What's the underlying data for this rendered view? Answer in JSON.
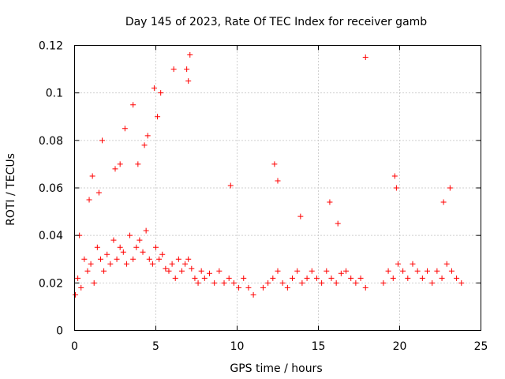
{
  "chart_data": {
    "type": "scatter",
    "title": "Day 145 of 2023, Rate Of TEC Index for receiver gamb",
    "xlabel": "GPS time / hours",
    "ylabel": "ROTI / TECUs",
    "xlim": [
      0,
      25
    ],
    "ylim": [
      0,
      0.12
    ],
    "xticks": [
      0,
      5,
      10,
      15,
      20,
      25
    ],
    "xtick_labels": [
      "0",
      "5",
      "10",
      "15",
      "20",
      "25"
    ],
    "yticks": [
      0,
      0.02,
      0.04,
      0.06,
      0.08,
      0.1,
      0.12
    ],
    "ytick_labels": [
      "0",
      "0.02",
      "0.04",
      "0.06",
      "0.08",
      "0.1",
      "0.12"
    ],
    "grid": true,
    "marker": "+",
    "color": "#ff0000",
    "series": [
      {
        "name": "ROTI",
        "x": [
          0.05,
          0.2,
          0.4,
          0.6,
          0.8,
          1.0,
          1.2,
          1.4,
          1.6,
          1.8,
          2.0,
          2.2,
          2.4,
          2.6,
          2.8,
          3.0,
          3.2,
          3.4,
          3.6,
          3.8,
          4.0,
          4.2,
          4.4,
          4.6,
          4.8,
          5.0,
          5.2,
          5.4,
          5.6,
          5.8,
          6.0,
          6.2,
          6.4,
          6.6,
          6.8,
          7.0,
          7.2,
          7.4,
          7.6,
          7.8,
          8.0,
          8.3,
          8.6,
          8.9,
          9.2,
          9.5,
          9.8,
          10.1,
          10.4,
          10.7,
          11.0,
          11.6,
          11.9,
          12.2,
          12.5,
          12.8,
          13.1,
          13.4,
          13.7,
          14.0,
          14.3,
          14.6,
          14.9,
          15.2,
          15.5,
          15.8,
          16.1,
          16.4,
          16.7,
          17.0,
          17.3,
          17.6,
          17.9,
          19.0,
          19.3,
          19.6,
          19.9,
          20.2,
          20.5,
          20.8,
          21.1,
          21.4,
          21.7,
          22.0,
          22.3,
          22.6,
          22.9,
          23.2,
          23.5,
          23.8,
          0.3,
          1.1,
          1.7,
          2.5,
          3.1,
          3.9,
          4.5,
          5.1,
          6.1,
          7.1,
          12.3,
          12.5,
          17.9,
          19.7,
          19.8,
          22.7,
          23.1,
          4.9,
          5.3,
          3.6,
          0.9,
          2.8,
          4.3,
          6.9,
          7.0,
          1.5,
          9.6,
          15.7,
          16.2,
          13.9
        ],
        "y": [
          0.015,
          0.022,
          0.018,
          0.03,
          0.025,
          0.028,
          0.02,
          0.035,
          0.03,
          0.025,
          0.032,
          0.028,
          0.038,
          0.03,
          0.035,
          0.033,
          0.028,
          0.04,
          0.03,
          0.035,
          0.038,
          0.033,
          0.042,
          0.03,
          0.028,
          0.035,
          0.03,
          0.032,
          0.026,
          0.025,
          0.028,
          0.022,
          0.03,
          0.025,
          0.028,
          0.03,
          0.026,
          0.022,
          0.02,
          0.025,
          0.022,
          0.024,
          0.02,
          0.025,
          0.02,
          0.022,
          0.02,
          0.018,
          0.022,
          0.018,
          0.015,
          0.018,
          0.02,
          0.022,
          0.025,
          0.02,
          0.018,
          0.022,
          0.025,
          0.02,
          0.022,
          0.025,
          0.022,
          0.02,
          0.025,
          0.022,
          0.02,
          0.024,
          0.025,
          0.022,
          0.02,
          0.022,
          0.018,
          0.02,
          0.025,
          0.022,
          0.028,
          0.025,
          0.022,
          0.028,
          0.025,
          0.022,
          0.025,
          0.02,
          0.025,
          0.022,
          0.028,
          0.025,
          0.022,
          0.02,
          0.04,
          0.065,
          0.08,
          0.068,
          0.085,
          0.07,
          0.082,
          0.09,
          0.11,
          0.116,
          0.07,
          0.063,
          0.115,
          0.065,
          0.06,
          0.054,
          0.06,
          0.102,
          0.1,
          0.095,
          0.055,
          0.07,
          0.078,
          0.11,
          0.105,
          0.058,
          0.061,
          0.054,
          0.045,
          0.048
        ]
      }
    ]
  }
}
